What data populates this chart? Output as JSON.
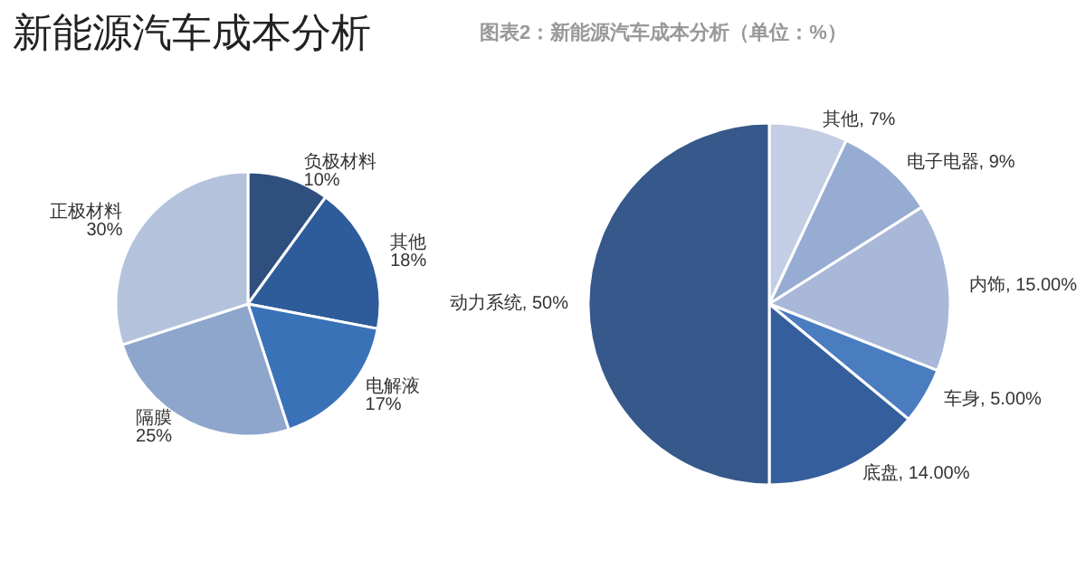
{
  "chart_data": [
    {
      "type": "pie",
      "title": "新能源汽车成本分析",
      "categories": [
        "负极材料",
        "其他",
        "电解液",
        "隔膜",
        "正极材料"
      ],
      "values": [
        10,
        18,
        17,
        25,
        30
      ],
      "value_labels": [
        "10%",
        "18%",
        "17%",
        "25%",
        "30%"
      ],
      "colors": [
        "#2f4f7f",
        "#2e5c9a",
        "#3a72b8",
        "#8ea5cc",
        "#b4c2dc"
      ]
    },
    {
      "type": "pie",
      "subtitle": "图表2：新能源汽车成本分析（单位：%）",
      "categories": [
        "其他",
        "电子电器",
        "内饰",
        "车身",
        "底盘",
        "动力系统"
      ],
      "values": [
        7,
        9,
        15,
        5,
        14,
        50
      ],
      "value_labels": [
        "7%",
        "9%",
        "15.00%",
        "5.00%",
        "14.00%",
        "50%"
      ],
      "colors": [
        "#c3cde3",
        "#97acd2",
        "#a9b8d8",
        "#4a7cc0",
        "#345f9c",
        "#36588a"
      ]
    }
  ]
}
